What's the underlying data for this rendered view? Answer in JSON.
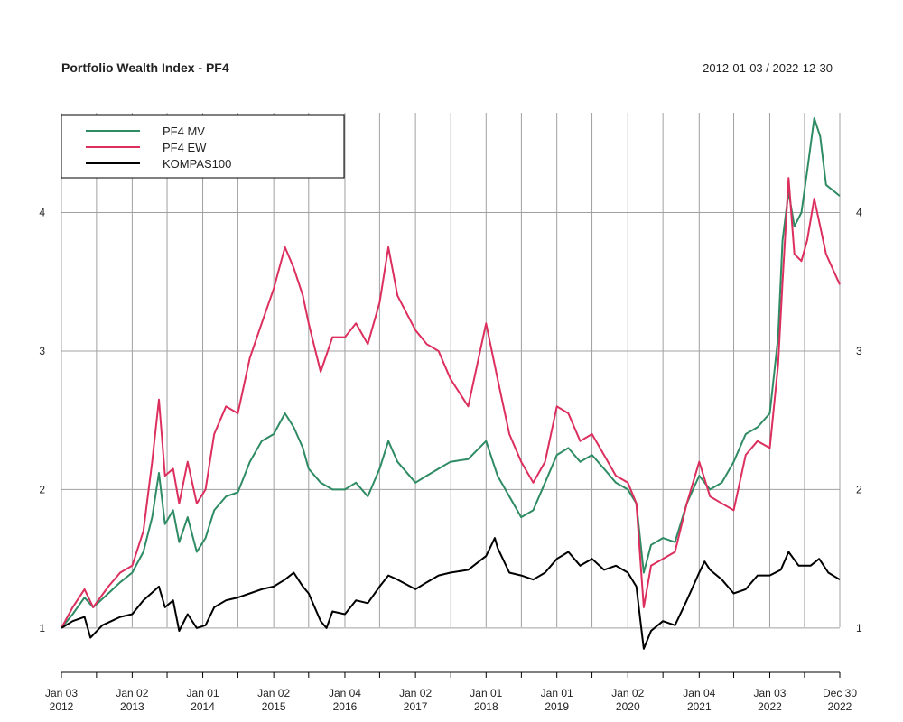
{
  "chart_data": {
    "type": "line",
    "title": "Portfolio Wealth Index - PF4",
    "date_range": "2012-01-03 / 2022-12-30",
    "xlabel": "",
    "ylabel": "",
    "ylim": [
      0.68,
      4.72
    ],
    "y_ticks": [
      1,
      2,
      3,
      4
    ],
    "x_ticks": [
      {
        "date": "2012-01-03",
        "label": [
          "Jan 03",
          "2012"
        ]
      },
      {
        "date": "2013-01-02",
        "label": [
          "Jan 02",
          "2013"
        ]
      },
      {
        "date": "2014-01-01",
        "label": [
          "Jan 01",
          "2014"
        ]
      },
      {
        "date": "2015-01-02",
        "label": [
          "Jan 02",
          "2015"
        ]
      },
      {
        "date": "2016-01-04",
        "label": [
          "Jan 04",
          "2016"
        ]
      },
      {
        "date": "2017-01-02",
        "label": [
          "Jan 02",
          "2017"
        ]
      },
      {
        "date": "2018-01-01",
        "label": [
          "Jan 01",
          "2018"
        ]
      },
      {
        "date": "2019-01-01",
        "label": [
          "Jan 01",
          "2019"
        ]
      },
      {
        "date": "2020-01-02",
        "label": [
          "Jan 02",
          "2020"
        ]
      },
      {
        "date": "2021-01-04",
        "label": [
          "Jan 04",
          "2021"
        ]
      },
      {
        "date": "2022-01-03",
        "label": [
          "Jan 03",
          "2022"
        ]
      },
      {
        "date": "2022-12-30",
        "label": [
          "Dec 30",
          "2022"
        ]
      }
    ],
    "grid_dates": [
      "2012-07-02",
      "2013-07-01",
      "2014-07-01",
      "2015-07-01",
      "2016-07-01",
      "2017-07-03",
      "2018-07-02",
      "2019-07-01",
      "2020-07-01",
      "2021-07-01",
      "2022-07-01"
    ],
    "grid": true,
    "legend_position": "top-left",
    "series": [
      {
        "name": "PF4 MV",
        "color": "#2e8b63",
        "points": [
          [
            "2012-01-03",
            1.0
          ],
          [
            "2012-03-01",
            1.1
          ],
          [
            "2012-05-01",
            1.22
          ],
          [
            "2012-06-15",
            1.15
          ],
          [
            "2012-09-01",
            1.25
          ],
          [
            "2012-11-01",
            1.33
          ],
          [
            "2013-01-02",
            1.4
          ],
          [
            "2013-03-01",
            1.55
          ],
          [
            "2013-04-15",
            1.8
          ],
          [
            "2013-05-20",
            2.12
          ],
          [
            "2013-06-20",
            1.75
          ],
          [
            "2013-08-01",
            1.85
          ],
          [
            "2013-09-01",
            1.62
          ],
          [
            "2013-10-15",
            1.8
          ],
          [
            "2013-12-01",
            1.55
          ],
          [
            "2014-01-15",
            1.65
          ],
          [
            "2014-03-01",
            1.85
          ],
          [
            "2014-05-01",
            1.95
          ],
          [
            "2014-07-01",
            1.98
          ],
          [
            "2014-09-01",
            2.2
          ],
          [
            "2014-11-01",
            2.35
          ],
          [
            "2015-01-02",
            2.4
          ],
          [
            "2015-03-01",
            2.55
          ],
          [
            "2015-04-15",
            2.45
          ],
          [
            "2015-06-01",
            2.3
          ],
          [
            "2015-07-01",
            2.15
          ],
          [
            "2015-09-01",
            2.05
          ],
          [
            "2015-11-01",
            2.0
          ],
          [
            "2016-01-04",
            2.0
          ],
          [
            "2016-03-01",
            2.05
          ],
          [
            "2016-05-01",
            1.95
          ],
          [
            "2016-07-01",
            2.15
          ],
          [
            "2016-08-15",
            2.35
          ],
          [
            "2016-10-01",
            2.2
          ],
          [
            "2017-01-02",
            2.05
          ],
          [
            "2017-03-01",
            2.1
          ],
          [
            "2017-05-01",
            2.15
          ],
          [
            "2017-07-01",
            2.2
          ],
          [
            "2017-10-01",
            2.22
          ],
          [
            "2018-01-01",
            2.35
          ],
          [
            "2018-03-01",
            2.1
          ],
          [
            "2018-05-01",
            1.95
          ],
          [
            "2018-07-01",
            1.8
          ],
          [
            "2018-09-01",
            1.85
          ],
          [
            "2018-11-01",
            2.05
          ],
          [
            "2019-01-01",
            2.25
          ],
          [
            "2019-03-01",
            2.3
          ],
          [
            "2019-05-01",
            2.2
          ],
          [
            "2019-07-01",
            2.25
          ],
          [
            "2019-09-01",
            2.15
          ],
          [
            "2019-11-01",
            2.05
          ],
          [
            "2020-01-02",
            2.0
          ],
          [
            "2020-02-15",
            1.9
          ],
          [
            "2020-03-24",
            1.4
          ],
          [
            "2020-05-01",
            1.6
          ],
          [
            "2020-07-01",
            1.65
          ],
          [
            "2020-09-01",
            1.62
          ],
          [
            "2020-11-01",
            1.9
          ],
          [
            "2021-01-04",
            2.1
          ],
          [
            "2021-03-01",
            2.0
          ],
          [
            "2021-05-01",
            2.05
          ],
          [
            "2021-07-01",
            2.2
          ],
          [
            "2021-09-01",
            2.4
          ],
          [
            "2021-11-01",
            2.45
          ],
          [
            "2022-01-03",
            2.55
          ],
          [
            "2022-02-15",
            3.1
          ],
          [
            "2022-03-10",
            3.8
          ],
          [
            "2022-04-10",
            4.15
          ],
          [
            "2022-05-10",
            3.9
          ],
          [
            "2022-06-15",
            4.0
          ],
          [
            "2022-07-15",
            4.3
          ],
          [
            "2022-08-20",
            4.68
          ],
          [
            "2022-09-20",
            4.55
          ],
          [
            "2022-10-20",
            4.2
          ],
          [
            "2022-12-30",
            4.12
          ]
        ]
      },
      {
        "name": "PF4 EW",
        "color": "#dc2f5e",
        "points": [
          [
            "2012-01-03",
            1.0
          ],
          [
            "2012-03-01",
            1.15
          ],
          [
            "2012-05-01",
            1.28
          ],
          [
            "2012-06-15",
            1.15
          ],
          [
            "2012-09-01",
            1.3
          ],
          [
            "2012-11-01",
            1.4
          ],
          [
            "2013-01-02",
            1.45
          ],
          [
            "2013-03-01",
            1.7
          ],
          [
            "2013-04-15",
            2.2
          ],
          [
            "2013-05-20",
            2.65
          ],
          [
            "2013-06-20",
            2.1
          ],
          [
            "2013-08-01",
            2.15
          ],
          [
            "2013-09-01",
            1.9
          ],
          [
            "2013-10-15",
            2.2
          ],
          [
            "2013-12-01",
            1.9
          ],
          [
            "2014-01-15",
            2.0
          ],
          [
            "2014-03-01",
            2.4
          ],
          [
            "2014-05-01",
            2.6
          ],
          [
            "2014-07-01",
            2.55
          ],
          [
            "2014-09-01",
            2.95
          ],
          [
            "2014-11-01",
            3.2
          ],
          [
            "2015-01-02",
            3.45
          ],
          [
            "2015-03-01",
            3.75
          ],
          [
            "2015-04-15",
            3.6
          ],
          [
            "2015-06-01",
            3.4
          ],
          [
            "2015-07-01",
            3.2
          ],
          [
            "2015-09-01",
            2.85
          ],
          [
            "2015-11-01",
            3.1
          ],
          [
            "2016-01-04",
            3.1
          ],
          [
            "2016-03-01",
            3.2
          ],
          [
            "2016-05-01",
            3.05
          ],
          [
            "2016-07-01",
            3.35
          ],
          [
            "2016-08-15",
            3.75
          ],
          [
            "2016-10-01",
            3.4
          ],
          [
            "2017-01-02",
            3.15
          ],
          [
            "2017-03-01",
            3.05
          ],
          [
            "2017-05-01",
            3.0
          ],
          [
            "2017-07-01",
            2.8
          ],
          [
            "2017-10-01",
            2.6
          ],
          [
            "2018-01-01",
            3.2
          ],
          [
            "2018-03-01",
            2.8
          ],
          [
            "2018-05-01",
            2.4
          ],
          [
            "2018-07-01",
            2.2
          ],
          [
            "2018-09-01",
            2.05
          ],
          [
            "2018-11-01",
            2.2
          ],
          [
            "2019-01-01",
            2.6
          ],
          [
            "2019-03-01",
            2.55
          ],
          [
            "2019-05-01",
            2.35
          ],
          [
            "2019-07-01",
            2.4
          ],
          [
            "2019-09-01",
            2.25
          ],
          [
            "2019-11-01",
            2.1
          ],
          [
            "2020-01-02",
            2.05
          ],
          [
            "2020-02-15",
            1.9
          ],
          [
            "2020-03-24",
            1.15
          ],
          [
            "2020-05-01",
            1.45
          ],
          [
            "2020-07-01",
            1.5
          ],
          [
            "2020-09-01",
            1.55
          ],
          [
            "2020-11-01",
            1.9
          ],
          [
            "2021-01-04",
            2.2
          ],
          [
            "2021-03-01",
            1.95
          ],
          [
            "2021-05-01",
            1.9
          ],
          [
            "2021-07-01",
            1.85
          ],
          [
            "2021-09-01",
            2.25
          ],
          [
            "2021-11-01",
            2.35
          ],
          [
            "2022-01-03",
            2.3
          ],
          [
            "2022-02-15",
            2.9
          ],
          [
            "2022-03-10",
            3.5
          ],
          [
            "2022-04-10",
            4.25
          ],
          [
            "2022-05-10",
            3.7
          ],
          [
            "2022-06-15",
            3.65
          ],
          [
            "2022-07-15",
            3.8
          ],
          [
            "2022-08-20",
            4.1
          ],
          [
            "2022-09-20",
            3.9
          ],
          [
            "2022-10-20",
            3.7
          ],
          [
            "2022-12-30",
            3.48
          ]
        ]
      },
      {
        "name": "KOMPAS100",
        "color": "#000000",
        "points": [
          [
            "2012-01-03",
            1.0
          ],
          [
            "2012-03-01",
            1.05
          ],
          [
            "2012-05-01",
            1.08
          ],
          [
            "2012-06-01",
            0.93
          ],
          [
            "2012-08-01",
            1.02
          ],
          [
            "2012-11-01",
            1.08
          ],
          [
            "2013-01-02",
            1.1
          ],
          [
            "2013-03-01",
            1.2
          ],
          [
            "2013-05-20",
            1.3
          ],
          [
            "2013-06-20",
            1.15
          ],
          [
            "2013-08-01",
            1.2
          ],
          [
            "2013-09-01",
            0.98
          ],
          [
            "2013-10-15",
            1.1
          ],
          [
            "2013-12-01",
            1.0
          ],
          [
            "2014-01-15",
            1.02
          ],
          [
            "2014-03-01",
            1.15
          ],
          [
            "2014-05-01",
            1.2
          ],
          [
            "2014-07-01",
            1.22
          ],
          [
            "2014-09-01",
            1.25
          ],
          [
            "2014-11-01",
            1.28
          ],
          [
            "2015-01-02",
            1.3
          ],
          [
            "2015-03-01",
            1.35
          ],
          [
            "2015-04-15",
            1.4
          ],
          [
            "2015-06-01",
            1.3
          ],
          [
            "2015-07-01",
            1.25
          ],
          [
            "2015-09-01",
            1.05
          ],
          [
            "2015-10-01",
            1.0
          ],
          [
            "2015-11-01",
            1.12
          ],
          [
            "2016-01-04",
            1.1
          ],
          [
            "2016-03-01",
            1.2
          ],
          [
            "2016-05-01",
            1.18
          ],
          [
            "2016-07-01",
            1.3
          ],
          [
            "2016-08-15",
            1.38
          ],
          [
            "2016-10-01",
            1.35
          ],
          [
            "2017-01-02",
            1.28
          ],
          [
            "2017-03-01",
            1.33
          ],
          [
            "2017-05-01",
            1.38
          ],
          [
            "2017-07-01",
            1.4
          ],
          [
            "2017-10-01",
            1.42
          ],
          [
            "2018-01-01",
            1.52
          ],
          [
            "2018-02-15",
            1.65
          ],
          [
            "2018-03-01",
            1.58
          ],
          [
            "2018-05-01",
            1.4
          ],
          [
            "2018-07-01",
            1.38
          ],
          [
            "2018-09-01",
            1.35
          ],
          [
            "2018-11-01",
            1.4
          ],
          [
            "2019-01-01",
            1.5
          ],
          [
            "2019-03-01",
            1.55
          ],
          [
            "2019-05-01",
            1.45
          ],
          [
            "2019-07-01",
            1.5
          ],
          [
            "2019-09-01",
            1.42
          ],
          [
            "2019-11-01",
            1.45
          ],
          [
            "2020-01-02",
            1.4
          ],
          [
            "2020-02-15",
            1.3
          ],
          [
            "2020-03-24",
            0.85
          ],
          [
            "2020-05-01",
            0.98
          ],
          [
            "2020-07-01",
            1.05
          ],
          [
            "2020-09-01",
            1.02
          ],
          [
            "2020-11-01",
            1.2
          ],
          [
            "2021-01-04",
            1.4
          ],
          [
            "2021-02-01",
            1.48
          ],
          [
            "2021-03-01",
            1.42
          ],
          [
            "2021-05-01",
            1.35
          ],
          [
            "2021-07-01",
            1.25
          ],
          [
            "2021-09-01",
            1.28
          ],
          [
            "2021-11-01",
            1.38
          ],
          [
            "2022-01-03",
            1.38
          ],
          [
            "2022-03-01",
            1.42
          ],
          [
            "2022-04-10",
            1.55
          ],
          [
            "2022-06-01",
            1.45
          ],
          [
            "2022-08-01",
            1.45
          ],
          [
            "2022-09-15",
            1.5
          ],
          [
            "2022-11-01",
            1.4
          ],
          [
            "2022-12-30",
            1.35
          ]
        ]
      }
    ]
  }
}
